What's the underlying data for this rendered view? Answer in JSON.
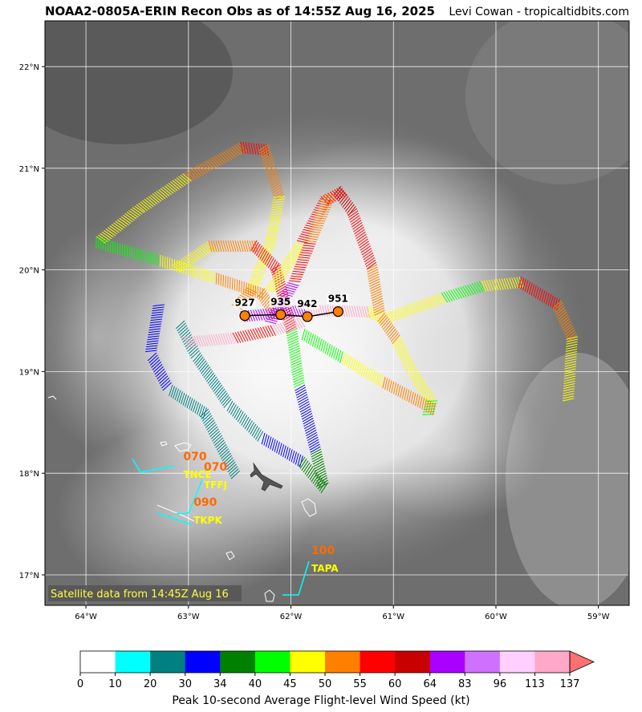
{
  "header": {
    "title": "NOAA2-0805A-ERIN Recon Obs as of 14:55Z Aug 16, 2025",
    "credit": "Levi Cowan - tropicaltidbits.com"
  },
  "map": {
    "lon_range": [
      -64.4,
      -58.7
    ],
    "lat_range": [
      16.7,
      22.45
    ],
    "lon_ticks": [
      {
        "value": -64,
        "label": "64°W"
      },
      {
        "value": -63,
        "label": "63°W"
      },
      {
        "value": -62,
        "label": "62°W"
      },
      {
        "value": -61,
        "label": "61°W"
      },
      {
        "value": -60,
        "label": "60°W"
      },
      {
        "value": -59,
        "label": "59°W"
      }
    ],
    "lat_ticks": [
      {
        "value": 22,
        "label": "22°N"
      },
      {
        "value": 21,
        "label": "21°N"
      },
      {
        "value": 20,
        "label": "20°N"
      },
      {
        "value": 19,
        "label": "19°N"
      },
      {
        "value": 18,
        "label": "18°N"
      },
      {
        "value": 17,
        "label": "17°N"
      }
    ],
    "satellite_note": "Satellite data from 14:45Z Aug 16",
    "pressure_obs": [
      {
        "label": "927",
        "lon": -62.45,
        "lat": 19.55
      },
      {
        "label": "935",
        "lon": -62.1,
        "lat": 19.56
      },
      {
        "label": "942",
        "lon": -61.84,
        "lat": 19.54
      },
      {
        "label": "951",
        "lon": -61.54,
        "lat": 19.59
      }
    ],
    "stations": [
      {
        "id": "TNCE",
        "speed": "070",
        "lon": -63.05,
        "lat": 18.0
      },
      {
        "id": "TFFJ",
        "speed": "070",
        "lon": -62.85,
        "lat": 17.9
      },
      {
        "id": "TKPK",
        "speed": "090",
        "lon": -62.95,
        "lat": 17.55
      },
      {
        "id": "TAPA",
        "speed": "100",
        "lon": -61.8,
        "lat": 17.08
      }
    ]
  },
  "colorbar": {
    "label": "Peak 10-second Average Flight-level Wind Speed (kt)",
    "ticks": [
      "0",
      "10",
      "20",
      "30",
      "34",
      "40",
      "45",
      "50",
      "55",
      "60",
      "64",
      "83",
      "96",
      "113",
      "137"
    ],
    "colors": [
      "#ffffff",
      "#00ffff",
      "#008080",
      "#0000ff",
      "#008000",
      "#00ff00",
      "#ffff00",
      "#ff8000",
      "#ff0000",
      "#c80000",
      "#aa00ff",
      "#d070ff",
      "#ffd0ff",
      "#ffa8c8"
    ],
    "extend_color": "#ff7070"
  }
}
